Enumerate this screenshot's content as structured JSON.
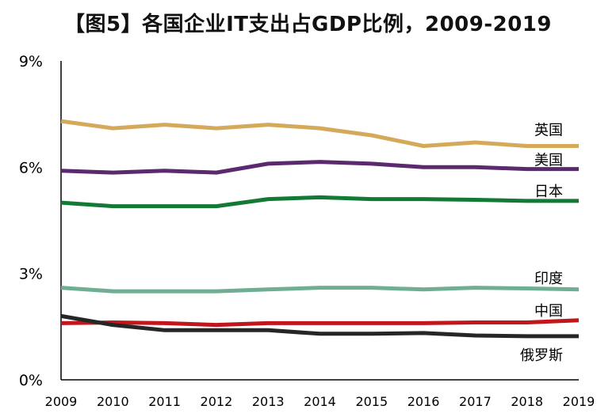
{
  "chart_data": {
    "type": "line",
    "title": "【图5】各国企业IT支出占GDP比例，2009-2019",
    "x": [
      "2009",
      "2010",
      "2011",
      "2012",
      "2013",
      "2014",
      "2015",
      "2016",
      "2017",
      "2018",
      "2019"
    ],
    "yticks": [
      "0%",
      "3%",
      "6%",
      "9%"
    ],
    "ylim": [
      0,
      9
    ],
    "grid": false,
    "legend": "direct labels at right end of lines",
    "series": [
      {
        "name": "英国",
        "color": "#d4a95a",
        "values": [
          7.3,
          7.1,
          7.2,
          7.1,
          7.2,
          7.1,
          6.9,
          6.6,
          6.7,
          6.6,
          6.6
        ]
      },
      {
        "name": "美国",
        "color": "#5b2a6e",
        "values": [
          5.9,
          5.85,
          5.9,
          5.85,
          6.1,
          6.15,
          6.1,
          6.0,
          6.0,
          5.95,
          5.95
        ]
      },
      {
        "name": "日本",
        "color": "#127a35",
        "values": [
          5.0,
          4.9,
          4.9,
          4.9,
          5.1,
          5.15,
          5.1,
          5.1,
          5.08,
          5.05,
          5.05
        ]
      },
      {
        "name": "印度",
        "color": "#6fae92",
        "values": [
          2.6,
          2.5,
          2.5,
          2.5,
          2.55,
          2.6,
          2.6,
          2.55,
          2.6,
          2.58,
          2.55
        ]
      },
      {
        "name": "中国",
        "color": "#c0161c",
        "values": [
          1.6,
          1.62,
          1.6,
          1.55,
          1.6,
          1.6,
          1.6,
          1.6,
          1.62,
          1.62,
          1.68
        ]
      },
      {
        "name": "俄罗斯",
        "color": "#262626",
        "values": [
          1.8,
          1.55,
          1.4,
          1.4,
          1.4,
          1.3,
          1.3,
          1.32,
          1.25,
          1.23,
          1.23
        ]
      }
    ]
  }
}
